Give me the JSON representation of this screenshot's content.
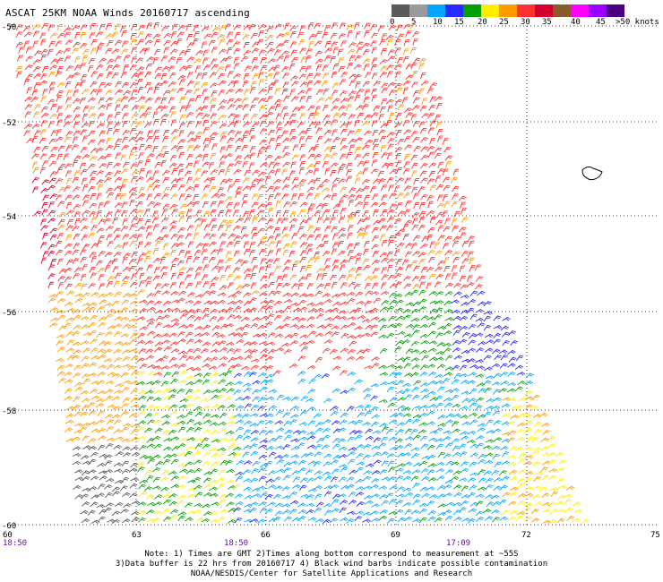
{
  "title": "ASCAT 25KM NOAA Winds 20160717 ascending",
  "colorbar": {
    "colors": [
      "#5a5a5a",
      "#9a9a9a",
      "#00a6ff",
      "#2a2aff",
      "#00a000",
      "#ffee00",
      "#ff9a00",
      "#ff3030",
      "#d20030",
      "#8b5a2b",
      "#ff00ff",
      "#9a00ff",
      "#4b0082"
    ],
    "labels": [
      "0",
      "5",
      "10",
      "15",
      "20",
      "25",
      "30",
      "35",
      "40",
      "45",
      ">50 knots"
    ]
  },
  "latitude_labels": [
    "-50",
    "-52",
    "-54",
    "-56",
    "-58",
    "-60"
  ],
  "longitude_labels": [
    "60",
    "63",
    "66",
    "69",
    "72",
    "75"
  ],
  "time_labels": [
    "18:50",
    "18:50",
    "17:09"
  ],
  "notes": [
    "Note: 1) Times are GMT 2)Times along bottom correspond to measurement at ~55S",
    "3)Data buffer is 22 hrs from 20160717 4) Black wind barbs indicate possible contamination",
    "NOAA/NESDIS/Center for Satellite Applications and Research"
  ]
}
